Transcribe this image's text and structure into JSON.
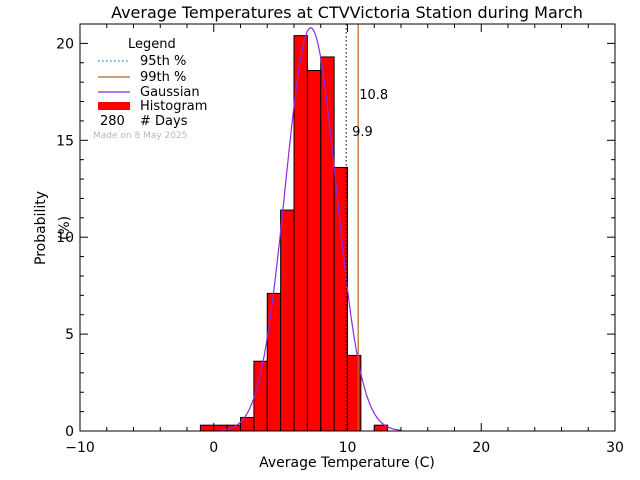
{
  "chart_data": {
    "type": "bar",
    "title": "Average Temperatures at CTVVictoria Station during March",
    "xlabel": "Average Temperature (C)",
    "ylabel": "Probability\n(%)",
    "xlim": [
      -10,
      30
    ],
    "ylim": [
      0,
      21
    ],
    "xticks": [
      "−10",
      "0",
      "10",
      "20",
      "30"
    ],
    "yticks": [
      "0",
      "5",
      "10",
      "15",
      "20"
    ],
    "bin_width": 1,
    "bins": [
      {
        "x0": -1,
        "value": 0.3
      },
      {
        "x0": 0,
        "value": 0.3
      },
      {
        "x0": 1,
        "value": 0.3
      },
      {
        "x0": 2,
        "value": 0.7
      },
      {
        "x0": 3,
        "value": 3.6
      },
      {
        "x0": 4,
        "value": 7.1
      },
      {
        "x0": 5,
        "value": 11.4
      },
      {
        "x0": 6,
        "value": 20.4
      },
      {
        "x0": 7,
        "value": 18.6
      },
      {
        "x0": 8,
        "value": 19.3
      },
      {
        "x0": 9,
        "value": 13.6
      },
      {
        "x0": 10,
        "value": 3.9
      },
      {
        "x0": 11,
        "value": 0.0
      },
      {
        "x0": 12,
        "value": 0.3
      }
    ],
    "gaussian": {
      "mean": 7.25,
      "sigma": 1.9,
      "peak": 20.8
    },
    "p95": {
      "value": 9.9,
      "label": "9.9",
      "color": "#1a7fd0"
    },
    "p99": {
      "value": 10.8,
      "label": "10.8",
      "color": "#b8651a"
    },
    "colors": {
      "histogram": "#ff0000",
      "gaussian": "#8a2be2",
      "p95": "#1a7fd0",
      "p99": "#b8651a"
    },
    "legend": {
      "title": "Legend",
      "items": [
        {
          "label": "95th %",
          "style": "dotted",
          "color": "#1a7fd0"
        },
        {
          "label": "99th %",
          "style": "solid",
          "color": "#b8651a"
        },
        {
          "label": "Gaussian",
          "style": "solid",
          "color": "#8a2be2"
        },
        {
          "label": "Histogram",
          "style": "thick",
          "color": "#ff0000"
        }
      ],
      "days_count": "280",
      "days_label": "# Days"
    },
    "made_on": "Made on 8 May 2025"
  }
}
